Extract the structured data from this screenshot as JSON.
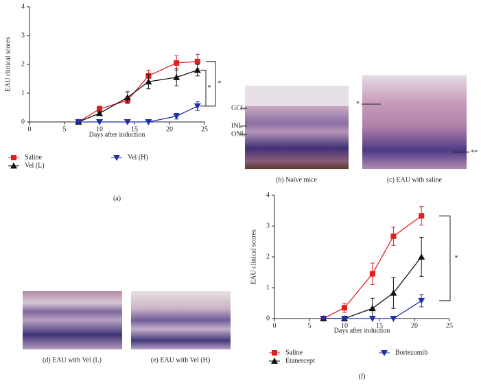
{
  "chart_data": [
    {
      "type": "line",
      "xlabel": "Days after induction",
      "ylabel": "EAU clinical scores",
      "caption": "(a)",
      "x": [
        7,
        10,
        14,
        17,
        21,
        24
      ],
      "xlim": [
        0,
        25
      ],
      "xticks": [
        0,
        5,
        10,
        15,
        20,
        25
      ],
      "ylim": [
        0,
        4
      ],
      "yticks": [
        0,
        1,
        2,
        3,
        4
      ],
      "series": [
        {
          "name": "Saline",
          "color": "#e02020",
          "marker": "square",
          "values": [
            0,
            0.45,
            0.75,
            1.6,
            2.05,
            2.1
          ],
          "errors": [
            0,
            0.1,
            0.1,
            0.2,
            0.25,
            0.25
          ]
        },
        {
          "name": "Vel (L)",
          "color": "#111111",
          "marker": "triangle-up",
          "values": [
            0,
            0.3,
            0.85,
            1.4,
            1.55,
            1.8
          ],
          "errors": [
            0,
            0.05,
            0.2,
            0.25,
            0.3,
            0.2
          ]
        },
        {
          "name": "Vel (H)",
          "color": "#1f2fa8",
          "marker": "triangle-down",
          "values": [
            0,
            0,
            0,
            0,
            0.2,
            0.55
          ],
          "errors": [
            0,
            0,
            0,
            0,
            0.1,
            0.15
          ]
        }
      ],
      "annotations": [
        "*",
        "*"
      ]
    },
    {
      "type": "line",
      "xlabel": "Days after induction",
      "ylabel": "EAU clinical scores",
      "caption": "(f)",
      "x": [
        7,
        10,
        14,
        17,
        21
      ],
      "xlim": [
        0,
        25
      ],
      "xticks": [
        0,
        5,
        10,
        15,
        20,
        25
      ],
      "ylim": [
        0,
        4
      ],
      "yticks": [
        0,
        1,
        2,
        3,
        4
      ],
      "series": [
        {
          "name": "Saline",
          "color": "#e02020",
          "marker": "square",
          "values": [
            0,
            0.35,
            1.45,
            2.67,
            3.33
          ],
          "errors": [
            0,
            0.15,
            0.35,
            0.3,
            0.3
          ]
        },
        {
          "name": "Etanercept",
          "color": "#111111",
          "marker": "triangle-up",
          "values": [
            0,
            0,
            0.33,
            0.83,
            2.0
          ],
          "errors": [
            0,
            0,
            0.33,
            0.5,
            0.63
          ]
        },
        {
          "name": "Bortezomib",
          "color": "#1f2fa8",
          "marker": "triangle-down",
          "values": [
            0,
            0,
            0,
            0,
            0.58
          ],
          "errors": [
            0,
            0,
            0,
            0,
            0.2
          ]
        }
      ],
      "annotations": [
        "*"
      ]
    }
  ],
  "histology": {
    "labels": [
      "GCL",
      "INL",
      "ONL",
      "*",
      "**"
    ],
    "captions": [
      "(b) Naïve mice",
      "(c) EAU with saline",
      "(d) EAU with Vel (L)",
      "(e) EAU with Vel (H)"
    ]
  }
}
